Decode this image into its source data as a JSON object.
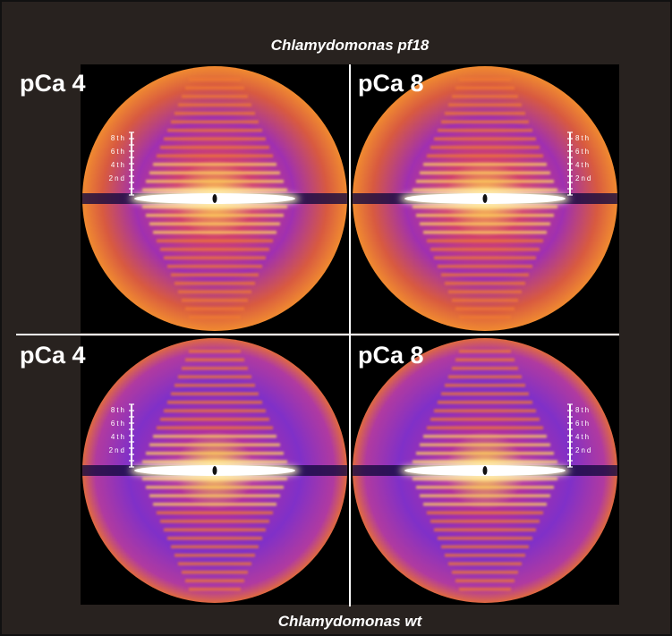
{
  "header": {
    "title": "Chlamydomonas pf18"
  },
  "footer": {
    "title": "Chlamydomonas wt"
  },
  "panels": [
    {
      "label": "pCa 4",
      "scale_labels": [
        "8th",
        "6th",
        "4th",
        "2nd"
      ]
    },
    {
      "label": "pCa 8",
      "scale_labels": [
        "8th",
        "6th",
        "4th",
        "2nd"
      ]
    },
    {
      "label": "pCa 4",
      "scale_labels": [
        "8th",
        "6th",
        "4th",
        "2nd"
      ]
    },
    {
      "label": "pCa 8",
      "scale_labels": [
        "8th",
        "6th",
        "4th",
        "2nd"
      ]
    }
  ]
}
